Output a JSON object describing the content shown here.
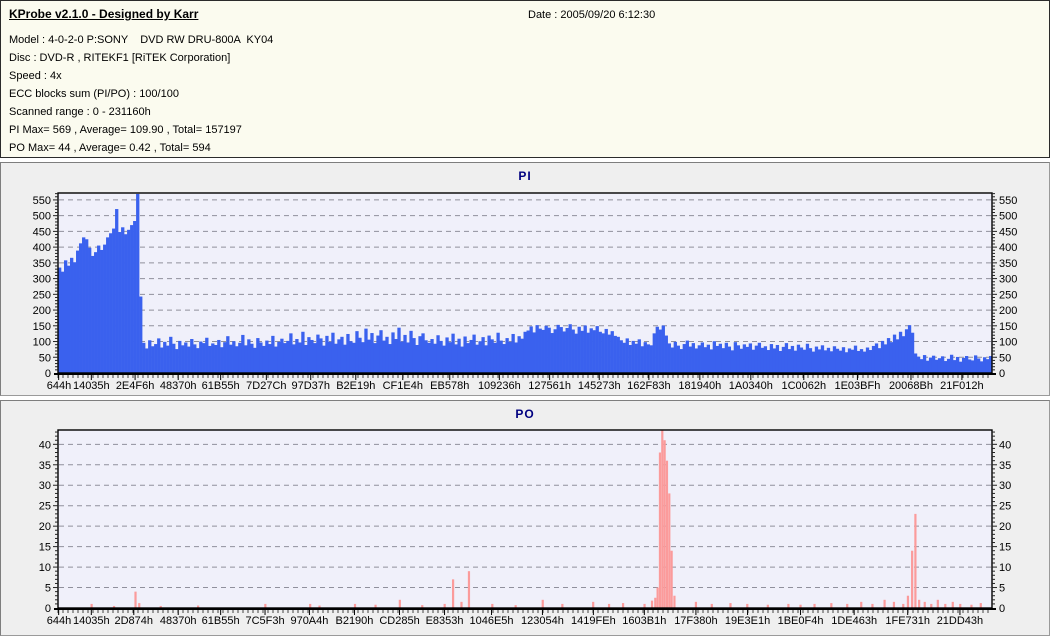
{
  "header": {
    "title": "KProbe v2.1.0 - Designed by Karr",
    "date": "Date : 2005/09/20 6:12:30",
    "lines": [
      "Model : 4-0-2-0 P:SONY    DVD RW DRU-800A  KY04",
      "Disc : DVD-R , RITEKF1 [RiTEK Corporation]",
      "Speed : 4x",
      "ECC blocks sum (PI/PO) : 100/100",
      "Scanned range : 0 - 231160h",
      "PI Max= 569 , Average= 109.90 , Total= 157197",
      "PO Max= 44 , Average= 0.42 , Total= 594"
    ]
  },
  "colors": {
    "header_bg": "#FBFBEF",
    "panel_bg": "#EFEFEF",
    "title_navy": "#000080"
  },
  "chart_data": [
    {
      "type": "bar",
      "title": "PI",
      "xlabel": "",
      "ylabel": "",
      "grid": true,
      "legend": "none",
      "ylim": [
        0,
        550
      ],
      "ytick_step": 50,
      "y_plot_top": 572,
      "x_end": "231160h",
      "x_tick_labels": [
        "644h",
        "14035h",
        "2E4F6h",
        "48370h",
        "61B55h",
        "7D27Ch",
        "97D37h",
        "B2E19h",
        "CF1E4h",
        "EB578h",
        "109236h",
        "127561h",
        "145273h",
        "162F83h",
        "181940h",
        "1A0340h",
        "1C0062h",
        "1E03BFh",
        "20068Bh",
        "21F012h"
      ],
      "stats": {
        "max": 569,
        "average": 109.9,
        "total": 157197
      },
      "bar_color": "#3A61EE",
      "plot_bg": "#F0F0FA",
      "grid_color": "#90909C",
      "title_color": "#000080",
      "values": [
        335,
        322,
        358,
        341,
        366,
        352,
        389,
        412,
        431,
        425,
        398,
        372,
        384,
        405,
        391,
        408,
        431,
        444,
        459,
        521,
        448,
        463,
        441,
        455,
        470,
        483,
        569,
        243,
        96,
        78,
        104,
        85,
        92,
        110,
        81,
        99,
        87,
        115,
        93,
        76,
        102,
        88,
        97,
        84,
        108,
        91,
        79,
        100,
        95,
        112,
        86,
        94,
        89,
        105,
        82,
        98,
        117,
        90,
        101,
        85,
        96,
        121,
        88,
        107,
        93,
        80,
        111,
        97,
        86,
        103,
        92,
        118,
        84,
        99,
        109,
        95,
        102,
        126,
        91,
        108,
        97,
        131,
        89,
        114,
        105,
        95,
        122,
        110,
        87,
        118,
        99,
        128,
        93,
        107,
        115,
        90,
        124,
        101,
        96,
        133,
        112,
        98,
        141,
        106,
        127,
        95,
        119,
        136,
        103,
        115,
        92,
        129,
        108,
        144,
        100,
        121,
        97,
        134,
        111,
        89,
        117,
        126,
        104,
        96,
        108,
        93,
        120,
        102,
        87,
        113,
        98,
        125,
        91,
        109,
        84,
        116,
        95,
        105,
        122,
        90,
        101,
        114,
        88,
        119,
        107,
        96,
        128,
        103,
        92,
        111,
        99,
        124,
        97,
        117,
        109,
        131,
        135,
        148,
        129,
        152,
        141,
        137,
        150,
        144,
        127,
        139,
        153,
        146,
        132,
        143,
        155,
        138,
        125,
        147,
        134,
        151,
        128,
        142,
        136,
        149,
        131,
        126,
        140,
        122,
        133,
        118,
        115,
        104,
        96,
        110,
        89,
        102,
        93,
        107,
        85,
        98,
        91,
        88,
        126,
        147,
        138,
        151,
        119,
        94,
        81,
        99,
        87,
        76,
        92,
        103,
        84,
        95,
        78,
        88,
        97,
        82,
        90,
        75,
        101,
        86,
        93,
        79,
        96,
        84,
        72,
        98,
        88,
        77,
        91,
        83,
        94,
        74,
        87,
        96,
        80,
        85,
        73,
        92,
        78,
        89,
        70,
        83,
        95,
        76,
        86,
        71,
        90,
        81,
        74,
        93,
        79,
        68,
        84,
        75,
        88,
        72,
        80,
        69,
        85,
        77,
        71,
        82,
        66,
        78,
        74,
        87,
        70,
        76,
        68,
        81,
        73,
        86,
        94,
        79,
        102,
        91,
        111,
        98,
        122,
        107,
        131,
        117,
        139,
        152,
        128,
        62,
        52,
        44,
        57,
        39,
        49,
        55,
        42,
        47,
        53,
        38,
        45,
        58,
        41,
        51,
        36,
        48,
        54,
        43,
        40,
        56,
        46,
        37,
        50,
        44,
        54
      ]
    },
    {
      "type": "bar",
      "title": "PO",
      "xlabel": "",
      "ylabel": "",
      "grid": true,
      "legend": "none",
      "ylim": [
        0,
        40
      ],
      "ytick_step": 5,
      "y_plot_top": 43.5,
      "x_end": "231160h",
      "x_tick_labels": [
        "644h",
        "14035h",
        "2D874h",
        "48370h",
        "61B55h",
        "7C5F3h",
        "970A4h",
        "B2190h",
        "CD285h",
        "E8353h",
        "1046E5h",
        "123054h",
        "1419FEh",
        "1603B1h",
        "17F380h",
        "19E3E1h",
        "1BE0F4h",
        "1DE463h",
        "1FE731h",
        "21DD43h"
      ],
      "stats": {
        "max": 44,
        "average": 0.42,
        "total": 594
      },
      "bar_color": "#FB9B9B",
      "plot_bg": "#F0F0FA",
      "grid_color": "#90909C",
      "title_color": "#000080",
      "spikes": [
        [
          0.036,
          1
        ],
        [
          0.06,
          0.5
        ],
        [
          0.083,
          4
        ],
        [
          0.087,
          1.2
        ],
        [
          0.11,
          0.5
        ],
        [
          0.15,
          0.6
        ],
        [
          0.222,
          1
        ],
        [
          0.27,
          1
        ],
        [
          0.28,
          0.6
        ],
        [
          0.318,
          1
        ],
        [
          0.34,
          0.8
        ],
        [
          0.366,
          2
        ],
        [
          0.39,
          0.7
        ],
        [
          0.414,
          1
        ],
        [
          0.423,
          7
        ],
        [
          0.432,
          1.5
        ],
        [
          0.44,
          9
        ],
        [
          0.465,
          1
        ],
        [
          0.49,
          0.7
        ],
        [
          0.519,
          2
        ],
        [
          0.54,
          1
        ],
        [
          0.573,
          1.5
        ],
        [
          0.59,
          1
        ],
        [
          0.605,
          1.2
        ],
        [
          0.628,
          1
        ],
        [
          0.636,
          1.8
        ],
        [
          0.6395,
          2.5
        ],
        [
          0.642,
          5
        ],
        [
          0.6445,
          38
        ],
        [
          0.647,
          44
        ],
        [
          0.6495,
          41
        ],
        [
          0.652,
          36
        ],
        [
          0.6545,
          28
        ],
        [
          0.657,
          14
        ],
        [
          0.66,
          3
        ],
        [
          0.683,
          1.5
        ],
        [
          0.7,
          1
        ],
        [
          0.72,
          1.2
        ],
        [
          0.738,
          1
        ],
        [
          0.76,
          0.8
        ],
        [
          0.782,
          1
        ],
        [
          0.795,
          0.8
        ],
        [
          0.81,
          1
        ],
        [
          0.828,
          1.2
        ],
        [
          0.845,
          1
        ],
        [
          0.86,
          1.5
        ],
        [
          0.872,
          1
        ],
        [
          0.885,
          2
        ],
        [
          0.895,
          1.5
        ],
        [
          0.905,
          1
        ],
        [
          0.91,
          3
        ],
        [
          0.9145,
          14
        ],
        [
          0.918,
          23
        ],
        [
          0.922,
          2
        ],
        [
          0.928,
          1.5
        ],
        [
          0.935,
          1
        ],
        [
          0.942,
          2
        ],
        [
          0.95,
          1
        ],
        [
          0.958,
          1.5
        ],
        [
          0.966,
          1
        ],
        [
          0.978,
          0.8
        ],
        [
          0.988,
          1.2
        ]
      ]
    }
  ]
}
